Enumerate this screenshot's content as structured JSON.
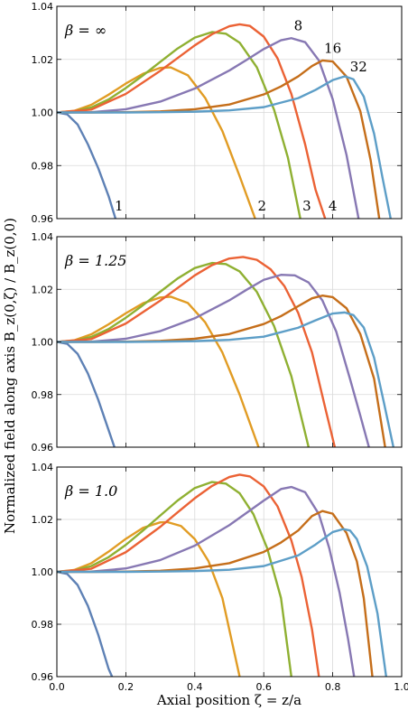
{
  "chart_data": {
    "type": "line",
    "shared_axes": {
      "xlabel": "Axial position ζ = z/a",
      "ylabel": "Normalized field along axis B_z(0,ζ) / B_z(0,0)",
      "xlim": [
        0.0,
        1.0
      ],
      "ylim": [
        0.96,
        1.04
      ],
      "xticks": [
        "0.0",
        "0.2",
        "0.4",
        "0.6",
        "0.8",
        "1.0"
      ],
      "yticks": [
        "0.96",
        "0.98",
        "1.00",
        "1.02",
        "1.04"
      ],
      "grid": true
    },
    "colors": {
      "1": "#5e81b5",
      "2": "#e19c24",
      "3": "#8fb032",
      "4": "#eb6235",
      "8": "#8778b3",
      "16": "#c56e1a",
      "32": "#5d9ec7"
    },
    "panels": [
      {
        "annotation": "β = ∞",
        "series_labels": [
          "1",
          "2",
          "3",
          "4",
          "8",
          "16",
          "32"
        ],
        "series": [
          {
            "n": 1,
            "x": [
              0,
              0.03,
              0.06,
              0.09,
              0.12,
              0.15,
              0.17
            ],
            "y": [
              1.0,
              0.9993,
              0.9955,
              0.988,
              0.979,
              0.9685,
              0.96
            ]
          },
          {
            "n": 2,
            "x": [
              0,
              0.05,
              0.1,
              0.15,
              0.2,
              0.25,
              0.3,
              0.33,
              0.38,
              0.43,
              0.48,
              0.53,
              0.575
            ],
            "y": [
              1.0,
              1.0006,
              1.0029,
              1.0067,
              1.0109,
              1.0146,
              1.0168,
              1.017,
              1.014,
              1.0055,
              0.993,
              0.976,
              0.96
            ]
          },
          {
            "n": 3,
            "x": [
              0,
              0.05,
              0.1,
              0.15,
              0.2,
              0.25,
              0.3,
              0.35,
              0.4,
              0.45,
              0.49,
              0.53,
              0.58,
              0.63,
              0.67,
              0.706
            ],
            "y": [
              1.0,
              1.0004,
              1.0019,
              1.0049,
              1.0092,
              1.014,
              1.0191,
              1.0241,
              1.0282,
              1.0303,
              1.0297,
              1.0263,
              1.017,
              1.001,
              0.983,
              0.96
            ]
          },
          {
            "n": 4,
            "x": [
              0,
              0.1,
              0.2,
              0.3,
              0.35,
              0.4,
              0.45,
              0.5,
              0.53,
              0.56,
              0.6,
              0.64,
              0.68,
              0.72,
              0.75,
              0.778
            ],
            "y": [
              1.0,
              1.0011,
              1.007,
              1.0157,
              1.0205,
              1.0253,
              1.0295,
              1.0325,
              1.0332,
              1.0326,
              1.0286,
              1.0204,
              1.007,
              0.988,
              0.971,
              0.96
            ]
          },
          {
            "n": 8,
            "x": [
              0,
              0.1,
              0.2,
              0.3,
              0.4,
              0.5,
              0.55,
              0.6,
              0.65,
              0.68,
              0.72,
              0.76,
              0.8,
              0.84,
              0.875
            ],
            "y": [
              1.0,
              1.0001,
              1.0012,
              1.0041,
              1.009,
              1.0158,
              1.0198,
              1.0239,
              1.0272,
              1.028,
              1.0265,
              1.0196,
              1.005,
              0.984,
              0.96
            ]
          },
          {
            "n": 16,
            "x": [
              0,
              0.1,
              0.2,
              0.3,
              0.4,
              0.5,
              0.6,
              0.65,
              0.7,
              0.74,
              0.77,
              0.8,
              0.84,
              0.88,
              0.91,
              0.935
            ],
            "y": [
              1.0,
              1.0,
              1.0001,
              1.0004,
              1.0012,
              1.003,
              1.0068,
              1.0098,
              1.0136,
              1.0175,
              1.0196,
              1.0192,
              1.0135,
              1.0005,
              0.982,
              0.96
            ]
          },
          {
            "n": 32,
            "x": [
              0,
              0.1,
              0.2,
              0.3,
              0.4,
              0.5,
              0.6,
              0.7,
              0.75,
              0.8,
              0.835,
              0.86,
              0.89,
              0.92,
              0.945,
              0.968
            ],
            "y": [
              1.0,
              1.0,
              1.0,
              1.0001,
              1.0003,
              1.0008,
              1.002,
              1.0054,
              1.0085,
              1.0122,
              1.0136,
              1.0125,
              1.006,
              0.992,
              0.975,
              0.96
            ]
          }
        ],
        "curve_labels": [
          {
            "text": "1",
            "x": 0.18,
            "y": 0.963
          },
          {
            "text": "2",
            "x": 0.595,
            "y": 0.963
          },
          {
            "text": "3",
            "x": 0.725,
            "y": 0.963
          },
          {
            "text": "4",
            "x": 0.8,
            "y": 0.963
          },
          {
            "text": "8",
            "x": 0.7,
            "y": 1.031
          },
          {
            "text": "16",
            "x": 0.8,
            "y": 1.0225
          },
          {
            "text": "32",
            "x": 0.875,
            "y": 1.0155
          }
        ]
      },
      {
        "annotation": "β = 1.25",
        "series_labels": [],
        "series": [
          {
            "n": 1,
            "x": [
              0,
              0.03,
              0.06,
              0.09,
              0.12,
              0.15,
              0.167
            ],
            "y": [
              1.0,
              0.9993,
              0.9955,
              0.988,
              0.978,
              0.9665,
              0.96
            ]
          },
          {
            "n": 2,
            "x": [
              0,
              0.05,
              0.1,
              0.15,
              0.2,
              0.25,
              0.3,
              0.33,
              0.38,
              0.43,
              0.48,
              0.53,
              0.585
            ],
            "y": [
              1.0,
              1.0006,
              1.0029,
              1.0067,
              1.0109,
              1.0147,
              1.0169,
              1.0172,
              1.0148,
              1.0075,
              0.996,
              0.98,
              0.96
            ]
          },
          {
            "n": 3,
            "x": [
              0,
              0.05,
              0.1,
              0.15,
              0.2,
              0.25,
              0.3,
              0.35,
              0.4,
              0.45,
              0.49,
              0.53,
              0.58,
              0.63,
              0.68,
              0.73
            ],
            "y": [
              1.0,
              1.0004,
              1.0019,
              1.0049,
              1.0092,
              1.014,
              1.0191,
              1.0241,
              1.0281,
              1.03,
              1.0296,
              1.0268,
              1.019,
              1.006,
              0.987,
              0.96
            ]
          },
          {
            "n": 4,
            "x": [
              0,
              0.1,
              0.2,
              0.3,
              0.35,
              0.4,
              0.45,
              0.5,
              0.54,
              0.58,
              0.62,
              0.66,
              0.7,
              0.74,
              0.78,
              0.806
            ],
            "y": [
              1.0,
              1.0011,
              1.007,
              1.0157,
              1.0205,
              1.0253,
              1.0292,
              1.0317,
              1.0323,
              1.0312,
              1.0276,
              1.0212,
              1.011,
              0.996,
              0.974,
              0.96
            ]
          },
          {
            "n": 8,
            "x": [
              0,
              0.1,
              0.2,
              0.3,
              0.4,
              0.5,
              0.55,
              0.6,
              0.65,
              0.69,
              0.73,
              0.77,
              0.81,
              0.85,
              0.88,
              0.905
            ],
            "y": [
              1.0,
              1.0001,
              1.0012,
              1.0041,
              1.009,
              1.0158,
              1.0198,
              1.0236,
              1.0255,
              1.0253,
              1.0226,
              1.0158,
              1.004,
              0.986,
              0.972,
              0.96
            ]
          },
          {
            "n": 16,
            "x": [
              0,
              0.1,
              0.2,
              0.3,
              0.4,
              0.5,
              0.6,
              0.65,
              0.7,
              0.74,
              0.77,
              0.8,
              0.84,
              0.88,
              0.92,
              0.952
            ],
            "y": [
              1.0,
              1.0,
              1.0001,
              1.0004,
              1.0012,
              1.003,
              1.0068,
              1.0098,
              1.0136,
              1.0166,
              1.0176,
              1.017,
              1.0128,
              1.003,
              0.986,
              0.96
            ]
          },
          {
            "n": 32,
            "x": [
              0,
              0.1,
              0.2,
              0.3,
              0.4,
              0.5,
              0.6,
              0.7,
              0.75,
              0.8,
              0.835,
              0.86,
              0.89,
              0.92,
              0.95,
              0.976
            ],
            "y": [
              1.0,
              1.0,
              1.0,
              1.0001,
              1.0003,
              1.0008,
              1.002,
              1.0054,
              1.0082,
              1.0108,
              1.0112,
              1.0102,
              1.0055,
              0.994,
              0.976,
              0.96
            ]
          }
        ],
        "curve_labels": []
      },
      {
        "annotation": "β = 1.0",
        "series_labels": [],
        "series": [
          {
            "n": 1,
            "x": [
              0,
              0.03,
              0.06,
              0.09,
              0.12,
              0.15,
              0.16
            ],
            "y": [
              1.0,
              0.9992,
              0.995,
              0.987,
              0.976,
              0.963,
              0.96
            ]
          },
          {
            "n": 2,
            "x": [
              0,
              0.05,
              0.1,
              0.15,
              0.2,
              0.25,
              0.3,
              0.32,
              0.36,
              0.4,
              0.44,
              0.48,
              0.53
            ],
            "y": [
              1.0,
              1.0007,
              1.0033,
              1.0077,
              1.0126,
              1.0168,
              1.0189,
              1.019,
              1.0175,
              1.0125,
              1.004,
              0.99,
              0.96
            ]
          },
          {
            "n": 3,
            "x": [
              0,
              0.05,
              0.1,
              0.15,
              0.2,
              0.25,
              0.3,
              0.35,
              0.4,
              0.45,
              0.49,
              0.53,
              0.57,
              0.61,
              0.65,
              0.68
            ],
            "y": [
              1.0,
              1.0005,
              1.0022,
              1.0056,
              1.0103,
              1.0158,
              1.0215,
              1.0272,
              1.032,
              1.0343,
              1.0337,
              1.03,
              1.022,
              1.009,
              0.99,
              0.96
            ]
          },
          {
            "n": 4,
            "x": [
              0,
              0.1,
              0.2,
              0.3,
              0.35,
              0.4,
              0.45,
              0.5,
              0.53,
              0.56,
              0.6,
              0.64,
              0.68,
              0.71,
              0.74,
              0.76
            ],
            "y": [
              1.0,
              1.0012,
              1.0075,
              1.0172,
              1.0227,
              1.0281,
              1.0328,
              1.0362,
              1.0371,
              1.0364,
              1.0326,
              1.025,
              1.012,
              0.998,
              0.978,
              0.96
            ]
          },
          {
            "n": 8,
            "x": [
              0,
              0.1,
              0.2,
              0.3,
              0.4,
              0.5,
              0.55,
              0.6,
              0.65,
              0.68,
              0.72,
              0.76,
              0.79,
              0.82,
              0.845,
              0.862
            ],
            "y": [
              1.0,
              1.0001,
              1.0013,
              1.0045,
              1.01,
              1.0178,
              1.0225,
              1.0272,
              1.0316,
              1.0324,
              1.0304,
              1.022,
              1.009,
              0.992,
              0.974,
              0.96
            ]
          },
          {
            "n": 16,
            "x": [
              0,
              0.1,
              0.2,
              0.3,
              0.4,
              0.5,
              0.6,
              0.65,
              0.7,
              0.74,
              0.77,
              0.8,
              0.84,
              0.87,
              0.89,
              0.915
            ],
            "y": [
              1.0,
              1.0,
              1.0001,
              1.0004,
              1.0013,
              1.0033,
              1.0076,
              1.0112,
              1.0158,
              1.0213,
              1.0232,
              1.0222,
              1.0148,
              1.004,
              0.99,
              0.96
            ]
          },
          {
            "n": 32,
            "x": [
              0,
              0.1,
              0.2,
              0.3,
              0.4,
              0.5,
              0.6,
              0.7,
              0.75,
              0.8,
              0.83,
              0.85,
              0.87,
              0.9,
              0.93,
              0.955
            ],
            "y": [
              1.0,
              1.0,
              1.0,
              1.0001,
              1.0003,
              1.0008,
              1.0022,
              1.0063,
              1.0104,
              1.0152,
              1.0163,
              1.0158,
              1.0125,
              1.002,
              0.984,
              0.96
            ]
          }
        ],
        "curve_labels": []
      }
    ]
  }
}
